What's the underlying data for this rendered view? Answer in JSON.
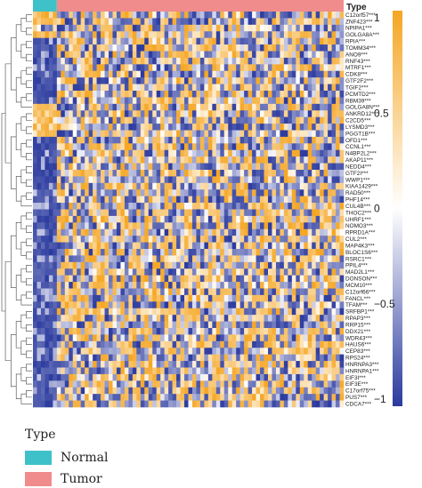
{
  "chart_data": {
    "type": "heatmap",
    "annotation_title": "Type",
    "groups": [
      {
        "name": "Normal",
        "color": "#3fc1c9",
        "samples": 6
      },
      {
        "name": "Tumor",
        "color": "#f08c8c",
        "samples": 72
      }
    ],
    "genes": [
      "C12orf57***",
      "ZNF423***",
      "NPIPA1***",
      "GOLGA8A***",
      "RPIA***",
      "TOMM34***",
      "ANO9***",
      "RNF43***",
      "MTRF1***",
      "CDK8***",
      "GTF2F2***",
      "TGIF2***",
      "PCMTD2***",
      "RBM39***",
      "GOLGA8N***",
      "ANKRD12***",
      "C2CD5***",
      "LYSMD3***",
      "PGGT1B***",
      "OFD1***",
      "CCNL1***",
      "N4BP2L2***",
      "AKAP11***",
      "NEDD4***",
      "GTF2I***",
      "WWP1***",
      "KIAA1429***",
      "RAD50***",
      "PHF14***",
      "CUL4B***",
      "THOC2***",
      "UHRF1***",
      "NOMO3***",
      "RPRD1A***",
      "CUL2***",
      "MAP4K3***",
      "BLOC1S6***",
      "RSRC1***",
      "PPIL4***",
      "MAD2L1***",
      "DONSON***",
      "MCM10***",
      "C12orf66***",
      "FANCL***",
      "TFAM***",
      "SRFBP1***",
      "RPAP3***",
      "RRP15***",
      "DDX21***",
      "WDR43***",
      "HAUS6***",
      "CEP83***",
      "RPS24***",
      "HNRNPA3***",
      "HNRNPA1***",
      "EIF3I***",
      "EIF3E***",
      "C17orf75***",
      "PUS7***",
      "CDCA7***"
    ],
    "color_scale": {
      "min": -1,
      "max": 1,
      "low": "#2b3a9e",
      "mid": "#ffffff",
      "high": "#f5a623"
    },
    "colorbar_ticks": [
      "1",
      "0.5",
      "0",
      "−0.5",
      "−1"
    ],
    "normal_pattern_by_gene": [
      "high",
      "high",
      "mixed",
      "high",
      "low",
      "low",
      "low",
      "low",
      "low",
      "low",
      "low",
      "low",
      "low",
      "low",
      "high",
      "high",
      "high",
      "high",
      "high",
      "low",
      "low",
      "low",
      "low",
      "low",
      "low",
      "low",
      "low",
      "low",
      "low",
      "low",
      "low",
      "low",
      "low",
      "low",
      "low",
      "low",
      "low",
      "low",
      "low",
      "low",
      "low",
      "low",
      "low",
      "low",
      "low",
      "low",
      "low",
      "low",
      "low",
      "low",
      "low",
      "low",
      "low",
      "low",
      "low",
      "low",
      "low",
      "low",
      "low",
      "low"
    ]
  },
  "legend": {
    "title": "Type",
    "items": [
      {
        "label": "Normal",
        "color": "#3fc1c9"
      },
      {
        "label": "Tumor",
        "color": "#f08c8c"
      }
    ]
  }
}
